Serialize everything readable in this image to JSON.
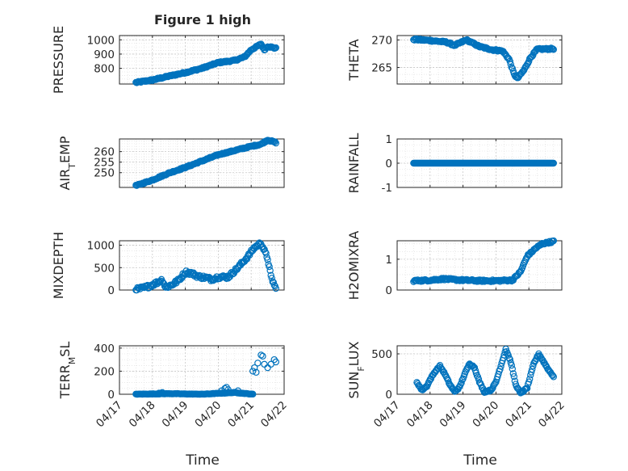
{
  "figure": {
    "title": "Figure 1 high",
    "xlabel": "Time",
    "x_tick_labels": [
      "04/17",
      "04/18",
      "04/19",
      "04/20",
      "04/21",
      "04/22"
    ],
    "marker_color": "#0072bd"
  },
  "chart_data": [
    {
      "type": "scatter",
      "title": "Figure 1 high",
      "xlabel": "",
      "ylabel_main": "PRESSURE",
      "ylabel_sub": "",
      "xlim": [
        "04/17",
        "04/22"
      ],
      "ylim": [
        690,
        1030
      ],
      "yticks": [
        800,
        900,
        1000
      ],
      "yticklabels": [
        "800",
        "900",
        "1000"
      ],
      "grid": true,
      "minor_grid": true,
      "x_start": 0.5,
      "x_end": 4.75,
      "y_points": [
        [
          0.5,
          700
        ],
        [
          1.0,
          718
        ],
        [
          1.5,
          745
        ],
        [
          2.0,
          770
        ],
        [
          2.5,
          800
        ],
        [
          3.0,
          840
        ],
        [
          3.5,
          855
        ],
        [
          3.8,
          880
        ],
        [
          4.0,
          930
        ],
        [
          4.3,
          970
        ],
        [
          4.4,
          930
        ],
        [
          4.5,
          955
        ],
        [
          4.75,
          940
        ]
      ],
      "noise": 5
    },
    {
      "type": "scatter",
      "title": "",
      "xlabel": "",
      "ylabel_main": "THETA",
      "ylabel_sub": "",
      "xlim": [
        "04/17",
        "04/22"
      ],
      "ylim": [
        262,
        270.8
      ],
      "yticks": [
        265,
        270
      ],
      "yticklabels": [
        "265",
        "270"
      ],
      "grid": true,
      "minor_grid": true,
      "x_start": 0.5,
      "x_end": 4.75,
      "y_points": [
        [
          0.5,
          270.1
        ],
        [
          1.0,
          269.9
        ],
        [
          1.5,
          269.6
        ],
        [
          1.75,
          269.0
        ],
        [
          2.1,
          270.0
        ],
        [
          2.5,
          268.8
        ],
        [
          2.9,
          268.2
        ],
        [
          3.2,
          268.0
        ],
        [
          3.4,
          266.5
        ],
        [
          3.55,
          263.8
        ],
        [
          3.65,
          263.0
        ],
        [
          3.85,
          264.5
        ],
        [
          4.05,
          266.8
        ],
        [
          4.25,
          268.3
        ],
        [
          4.75,
          268.4
        ]
      ],
      "noise": 0.15
    },
    {
      "type": "scatter",
      "title": "",
      "xlabel": "",
      "ylabel_main": "AIR",
      "ylabel_sub": "T",
      "ylabel_tail": "EMP",
      "xlim": [
        "04/17",
        "04/22"
      ],
      "ylim": [
        243,
        266
      ],
      "yticks": [
        250,
        255,
        260
      ],
      "yticklabels": [
        "250",
        "255",
        "260"
      ],
      "grid": true,
      "minor_grid": true,
      "x_start": 0.5,
      "x_end": 4.75,
      "y_points": [
        [
          0.5,
          243.8
        ],
        [
          1.0,
          246.5
        ],
        [
          1.5,
          249.8
        ],
        [
          2.0,
          252.5
        ],
        [
          2.5,
          255.5
        ],
        [
          3.0,
          258.5
        ],
        [
          3.5,
          260.5
        ],
        [
          4.0,
          262.5
        ],
        [
          4.3,
          263.5
        ],
        [
          4.5,
          265.5
        ],
        [
          4.75,
          264.3
        ]
      ],
      "noise": 0.3
    },
    {
      "type": "scatter",
      "title": "",
      "xlabel": "",
      "ylabel_main": "RAINFALL",
      "ylabel_sub": "",
      "xlim": [
        "04/17",
        "04/22"
      ],
      "ylim": [
        -1,
        1
      ],
      "yticks": [
        -1,
        0,
        1
      ],
      "yticklabels": [
        "-1",
        "0",
        "1"
      ],
      "grid": true,
      "minor_grid": true,
      "x_start": 0.5,
      "x_end": 4.75,
      "y_points": [
        [
          0.5,
          0
        ],
        [
          4.75,
          0
        ]
      ],
      "noise": 0
    },
    {
      "type": "scatter",
      "title": "",
      "xlabel": "",
      "ylabel_main": "MIXDEPTH",
      "ylabel_sub": "",
      "xlim": [
        "04/17",
        "04/22"
      ],
      "ylim": [
        0,
        1100
      ],
      "yticks": [
        0,
        500,
        1000
      ],
      "yticklabels": [
        "0",
        "500",
        "1000"
      ],
      "grid": true,
      "minor_grid": true,
      "x_start": 0.5,
      "x_end": 4.75,
      "y_points": [
        [
          0.5,
          10
        ],
        [
          0.8,
          60
        ],
        [
          1.1,
          150
        ],
        [
          1.3,
          230
        ],
        [
          1.4,
          60
        ],
        [
          1.6,
          120
        ],
        [
          1.8,
          220
        ],
        [
          2.0,
          400
        ],
        [
          2.2,
          370
        ],
        [
          2.4,
          300
        ],
        [
          2.6,
          280
        ],
        [
          2.8,
          240
        ],
        [
          3.0,
          290
        ],
        [
          3.3,
          290
        ],
        [
          3.6,
          500
        ],
        [
          3.9,
          750
        ],
        [
          4.1,
          950
        ],
        [
          4.3,
          1050
        ],
        [
          4.5,
          700
        ],
        [
          4.6,
          300
        ],
        [
          4.75,
          20
        ]
      ],
      "noise": 40
    },
    {
      "type": "scatter",
      "title": "",
      "xlabel": "",
      "ylabel_main": "H2OMIXRA",
      "ylabel_sub": "",
      "xlim": [
        "04/17",
        "04/22"
      ],
      "ylim": [
        0,
        1.6
      ],
      "yticks": [
        0,
        1
      ],
      "yticklabels": [
        "0",
        "1"
      ],
      "grid": true,
      "minor_grid": true,
      "x_start": 0.5,
      "x_end": 4.75,
      "y_points": [
        [
          0.5,
          0.3
        ],
        [
          1.0,
          0.32
        ],
        [
          1.4,
          0.36
        ],
        [
          1.8,
          0.33
        ],
        [
          2.5,
          0.3
        ],
        [
          3.0,
          0.3
        ],
        [
          3.5,
          0.32
        ],
        [
          3.75,
          0.6
        ],
        [
          3.95,
          1.1
        ],
        [
          4.2,
          1.35
        ],
        [
          4.4,
          1.5
        ],
        [
          4.75,
          1.58
        ]
      ],
      "noise": 0.03
    },
    {
      "type": "scatter",
      "title": "",
      "xlabel": "Time",
      "ylabel_main": "TERR",
      "ylabel_sub": "M",
      "ylabel_tail": "SL",
      "xlim": [
        "04/17",
        "04/22"
      ],
      "ylim": [
        0,
        420
      ],
      "yticks": [
        0,
        200,
        400
      ],
      "yticklabels": [
        "0",
        "200",
        "400"
      ],
      "grid": true,
      "minor_grid": true,
      "x_start": 0.5,
      "x_end": 4.05,
      "y_points": [
        [
          0.5,
          0
        ],
        [
          1.5,
          5
        ],
        [
          2.5,
          0
        ],
        [
          3.5,
          15
        ],
        [
          4.05,
          0
        ]
      ],
      "extra_points": [
        [
          1.2,
          10
        ],
        [
          1.3,
          15
        ],
        [
          3.1,
          30
        ],
        [
          3.2,
          50
        ],
        [
          3.25,
          60
        ],
        [
          3.3,
          40
        ],
        [
          3.6,
          30
        ],
        [
          3.7,
          10
        ],
        [
          4.05,
          200
        ],
        [
          4.1,
          230
        ],
        [
          4.15,
          190
        ],
        [
          4.2,
          270
        ],
        [
          4.3,
          340
        ],
        [
          4.35,
          330
        ],
        [
          4.4,
          260
        ],
        [
          4.5,
          230
        ],
        [
          4.6,
          260
        ],
        [
          4.7,
          300
        ],
        [
          4.75,
          280
        ]
      ],
      "noise": 2
    },
    {
      "type": "scatter",
      "title": "",
      "xlabel": "Time",
      "ylabel_main": "SUN",
      "ylabel_sub": "F",
      "ylabel_tail": "LUX",
      "xlim": [
        "04/17",
        "04/22"
      ],
      "ylim": [
        0,
        600
      ],
      "yticks": [
        0,
        500
      ],
      "yticklabels": [
        "0",
        "500"
      ],
      "grid": true,
      "minor_grid": true,
      "x_start": 0.6,
      "x_end": 4.75,
      "y_points": [
        [
          0.6,
          150
        ],
        [
          0.75,
          50
        ],
        [
          0.9,
          100
        ],
        [
          1.0,
          180
        ],
        [
          1.15,
          280
        ],
        [
          1.3,
          350
        ],
        [
          1.45,
          250
        ],
        [
          1.6,
          120
        ],
        [
          1.75,
          30
        ],
        [
          1.9,
          90
        ],
        [
          2.05,
          250
        ],
        [
          2.2,
          380
        ],
        [
          2.35,
          330
        ],
        [
          2.5,
          150
        ],
        [
          2.65,
          30
        ],
        [
          2.85,
          50
        ],
        [
          3.0,
          150
        ],
        [
          3.15,
          350
        ],
        [
          3.3,
          560
        ],
        [
          3.45,
          400
        ],
        [
          3.6,
          120
        ],
        [
          3.75,
          10
        ],
        [
          3.95,
          80
        ],
        [
          4.15,
          380
        ],
        [
          4.3,
          500
        ],
        [
          4.45,
          400
        ],
        [
          4.6,
          300
        ],
        [
          4.75,
          220
        ]
      ],
      "noise": 8
    }
  ]
}
